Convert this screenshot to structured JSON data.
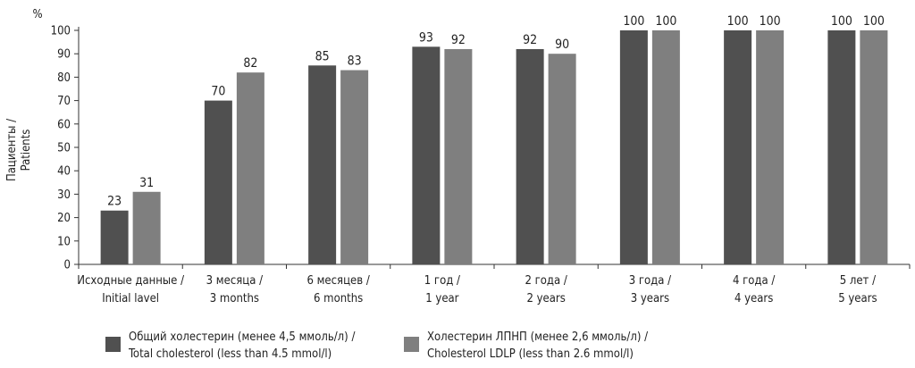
{
  "chart_data": {
    "type": "bar",
    "ylabel": [
      "Пациенты /",
      "Patients"
    ],
    "y_unit": "%",
    "ylim": [
      0,
      100
    ],
    "yticks": [
      0,
      10,
      20,
      30,
      40,
      50,
      60,
      70,
      80,
      90,
      100
    ],
    "grid": false,
    "legend_position": "bottom",
    "categories": [
      [
        "Исходные данные /",
        "Initial lavel"
      ],
      [
        "3 месяца /",
        "3 months"
      ],
      [
        "6 месяцев /",
        "6 months"
      ],
      [
        "1 год /",
        "1 year"
      ],
      [
        "2 года /",
        "2 years"
      ],
      [
        "3 года /",
        "3 years"
      ],
      [
        "4 года /",
        "4 years"
      ],
      [
        "5 лет /",
        "5 years"
      ]
    ],
    "series": [
      {
        "name": [
          "Общий холестерин (менее 4,5 ммоль/л) /",
          "Total cholesterol (less than 4.5 mmol/l)"
        ],
        "color": "#505050",
        "values": [
          23,
          70,
          85,
          93,
          92,
          100,
          100,
          100
        ]
      },
      {
        "name": [
          "Холестерин ЛПНП (менее 2,6 ммоль/л) /",
          "Cholesterol LDLP (less than 2.6 mmol/l)"
        ],
        "color": "#7f7f7f",
        "values": [
          31,
          82,
          83,
          92,
          90,
          100,
          100,
          100
        ]
      }
    ]
  }
}
